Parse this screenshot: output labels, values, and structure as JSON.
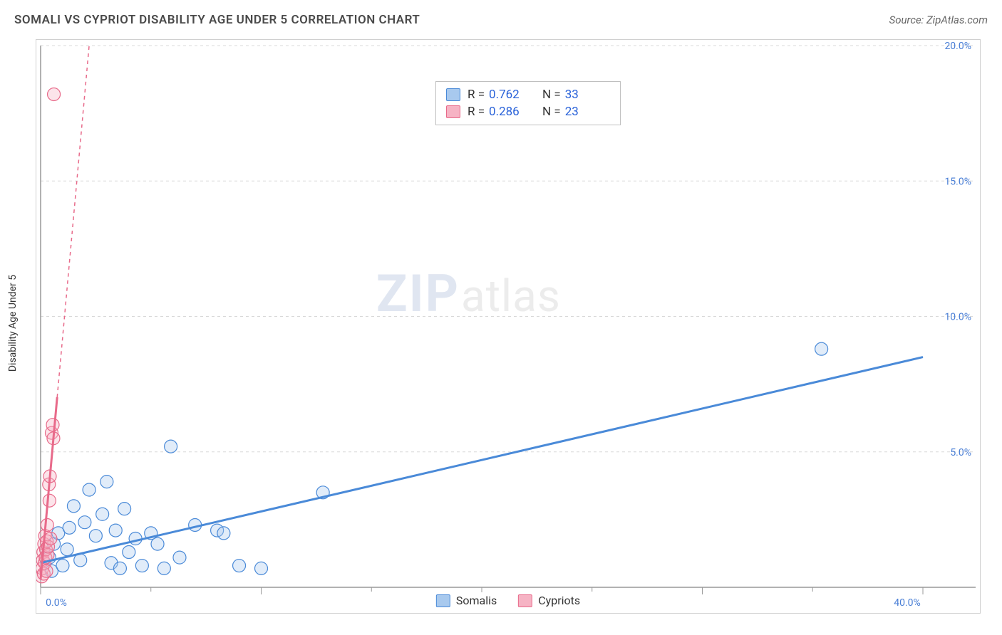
{
  "title": "SOMALI VS CYPRIOT DISABILITY AGE UNDER 5 CORRELATION CHART",
  "source_text": "Source: ZipAtlas.com",
  "y_axis_label": "Disability Age Under 5",
  "watermark": {
    "part1": "ZIP",
    "part2": "atlas"
  },
  "chart": {
    "type": "scatter",
    "background_color": "#ffffff",
    "border_color": "#d0d0d0",
    "grid_color": "#d8d8d8",
    "axis_color": "#999999",
    "tick_label_color": "#4a7fd6",
    "xlim": [
      0,
      40
    ],
    "ylim": [
      0,
      20
    ],
    "x_ticks": [
      0,
      10,
      20,
      30,
      40
    ],
    "x_tick_labels": [
      "0.0%",
      "",
      "",
      "",
      "40.0%"
    ],
    "x_minor_interval": 5,
    "y_ticks": [
      5,
      10,
      15,
      20
    ],
    "y_tick_labels": [
      "5.0%",
      "10.0%",
      "15.0%",
      "20.0%"
    ],
    "point_radius": 9,
    "series": [
      {
        "name": "Somalis",
        "color": "#4a8ad8",
        "fill": "#a8c9ee",
        "R": "0.762",
        "N": "33",
        "trend": {
          "x1": 0,
          "y1": 0.9,
          "x2": 40,
          "y2": 8.5,
          "solid_until_x": 40
        },
        "points": [
          [
            0.4,
            1.1
          ],
          [
            0.5,
            0.6
          ],
          [
            0.6,
            1.6
          ],
          [
            0.8,
            2.0
          ],
          [
            1.0,
            0.8
          ],
          [
            1.2,
            1.4
          ],
          [
            1.3,
            2.2
          ],
          [
            1.5,
            3.0
          ],
          [
            1.8,
            1.0
          ],
          [
            2.0,
            2.4
          ],
          [
            2.2,
            3.6
          ],
          [
            2.5,
            1.9
          ],
          [
            2.8,
            2.7
          ],
          [
            3.0,
            3.9
          ],
          [
            3.2,
            0.9
          ],
          [
            3.4,
            2.1
          ],
          [
            3.6,
            0.7
          ],
          [
            3.8,
            2.9
          ],
          [
            4.0,
            1.3
          ],
          [
            4.3,
            1.8
          ],
          [
            4.6,
            0.8
          ],
          [
            5.0,
            2.0
          ],
          [
            5.3,
            1.6
          ],
          [
            5.6,
            0.7
          ],
          [
            5.9,
            5.2
          ],
          [
            6.3,
            1.1
          ],
          [
            7.0,
            2.3
          ],
          [
            8.0,
            2.1
          ],
          [
            8.3,
            2.0
          ],
          [
            9.0,
            0.8
          ],
          [
            10.0,
            0.7
          ],
          [
            12.8,
            3.5
          ],
          [
            35.4,
            8.8
          ]
        ]
      },
      {
        "name": "Cypriots",
        "color": "#e86a8a",
        "fill": "#f6b3c4",
        "R": "0.286",
        "N": "23",
        "trend": {
          "x1": 0,
          "y1": 0.3,
          "x2": 2.2,
          "y2": 20,
          "solid_until_x": 0.75
        },
        "points": [
          [
            0.05,
            0.4
          ],
          [
            0.08,
            0.7
          ],
          [
            0.1,
            1.0
          ],
          [
            0.12,
            1.3
          ],
          [
            0.14,
            0.5
          ],
          [
            0.16,
            1.6
          ],
          [
            0.18,
            0.9
          ],
          [
            0.2,
            1.9
          ],
          [
            0.22,
            1.1
          ],
          [
            0.24,
            1.4
          ],
          [
            0.26,
            0.6
          ],
          [
            0.28,
            1.7
          ],
          [
            0.3,
            2.3
          ],
          [
            0.32,
            1.2
          ],
          [
            0.34,
            1.5
          ],
          [
            0.38,
            3.8
          ],
          [
            0.4,
            3.2
          ],
          [
            0.42,
            4.1
          ],
          [
            0.45,
            1.8
          ],
          [
            0.5,
            5.7
          ],
          [
            0.55,
            6.0
          ],
          [
            0.58,
            5.5
          ],
          [
            0.6,
            18.2
          ]
        ]
      }
    ]
  },
  "stat_box": {
    "rows": [
      {
        "swatch_fill": "#a8c9ee",
        "swatch_border": "#4a8ad8",
        "R": "0.762",
        "N": "33"
      },
      {
        "swatch_fill": "#f6b3c4",
        "swatch_border": "#e86a8a",
        "R": "0.286",
        "N": "23"
      }
    ],
    "labels": {
      "R": "R =",
      "N": "N ="
    }
  },
  "legend": {
    "items": [
      {
        "label": "Somalis",
        "fill": "#a8c9ee",
        "border": "#4a8ad8"
      },
      {
        "label": "Cypriots",
        "fill": "#f6b3c4",
        "border": "#e86a8a"
      }
    ]
  }
}
